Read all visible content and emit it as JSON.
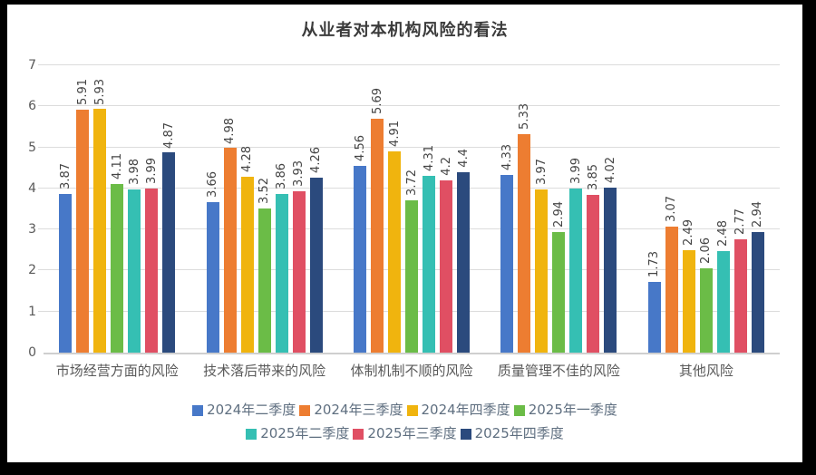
{
  "title": "从业者对本机构风险的看法",
  "chart_data": {
    "type": "bar",
    "title": "从业者对本机构风险的看法",
    "categories": [
      "市场经营方面的风险",
      "技术落后带来的风险",
      "体制机制不顺的风险",
      "质量管理不佳的风险",
      "其他风险"
    ],
    "series": [
      {
        "name": "2024年二季度",
        "color": "#4778C8",
        "values": [
          3.87,
          3.66,
          4.56,
          4.33,
          1.73
        ]
      },
      {
        "name": "2024年三季度",
        "color": "#ED7D31",
        "values": [
          5.91,
          4.98,
          5.69,
          5.33,
          3.07
        ]
      },
      {
        "name": "2024年四季度",
        "color": "#F0B40E",
        "values": [
          5.93,
          4.28,
          4.91,
          3.97,
          2.49
        ]
      },
      {
        "name": "2025年一季度",
        "color": "#6BBC47",
        "values": [
          4.11,
          3.52,
          3.72,
          2.94,
          2.06
        ]
      },
      {
        "name": "2025年二季度",
        "color": "#35BFB3",
        "values": [
          3.98,
          3.86,
          4.31,
          3.99,
          2.48
        ]
      },
      {
        "name": "2025年三季度",
        "color": "#E04F63",
        "values": [
          3.99,
          3.93,
          4.2,
          3.85,
          2.77
        ]
      },
      {
        "name": "2025年四季度",
        "color": "#2B4A7D",
        "values": [
          4.87,
          4.26,
          4.4,
          4.02,
          2.94
        ]
      }
    ],
    "ylim": [
      0,
      7
    ],
    "y_ticks": [
      0,
      1,
      2,
      3,
      4,
      5,
      6,
      7
    ],
    "grid": true,
    "data_labels": true,
    "data_label_rotation": 90,
    "legend_position": "bottom",
    "legend_rows": [
      4,
      3
    ]
  }
}
